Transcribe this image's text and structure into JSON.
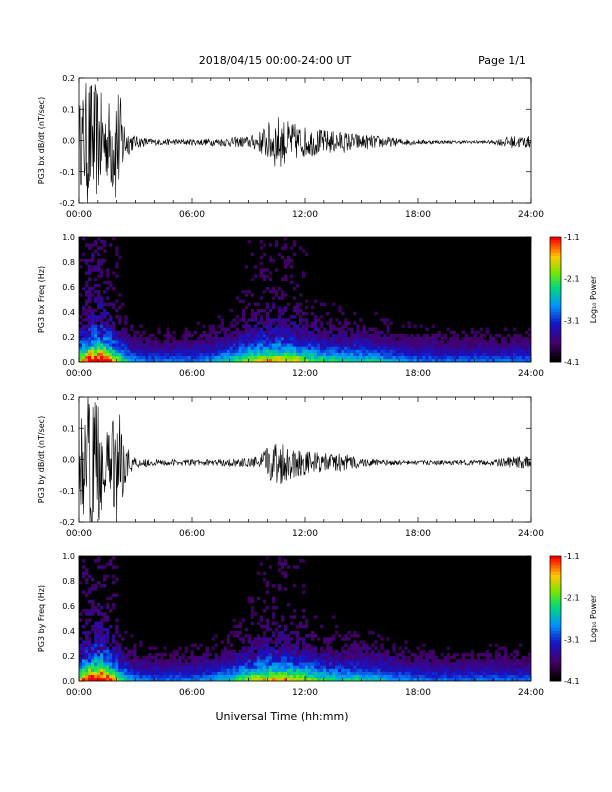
{
  "header": {
    "title": "2018/04/15  00:00-24:00 UT",
    "page": "Page 1/1"
  },
  "xlabel": "Universal Time (hh:mm)",
  "x_ticks": [
    "00:00",
    "06:00",
    "12:00",
    "18:00",
    "24:00"
  ],
  "colors": {
    "background": "#ffffff",
    "axis": "#000000",
    "trace": "#000000",
    "spectrogram_bg": "#000000"
  },
  "chart_data": [
    {
      "type": "line",
      "ylabel": "PG3 bx dB/dt (nT/sec)",
      "xlim": [
        0,
        24
      ],
      "ylim": [
        -0.2,
        0.2
      ],
      "y_ticks": [
        "0.2",
        "0.1",
        "0.0",
        "-0.1",
        "-0.2"
      ],
      "series": [
        {
          "x": [
            0,
            0.5,
            1,
            1.5,
            2,
            2.5,
            3,
            4,
            5,
            6,
            7,
            8,
            9,
            9.5,
            10,
            10.5,
            11,
            12,
            13,
            14,
            15,
            16,
            17,
            18,
            19,
            20,
            21,
            22,
            22.5,
            23,
            24
          ],
          "amplitude": [
            0.12,
            0.22,
            0.18,
            0.12,
            0.22,
            0.05,
            0.02,
            0.01,
            0.01,
            0.01,
            0.012,
            0.015,
            0.02,
            0.03,
            0.06,
            0.09,
            0.07,
            0.05,
            0.04,
            0.035,
            0.025,
            0.02,
            0.012,
            0.008,
            0.006,
            0.005,
            0.005,
            0.006,
            0.015,
            0.02,
            0.02
          ],
          "offset": -0.005
        }
      ]
    },
    {
      "type": "heatmap",
      "ylabel": "PG3 bx Freq (Hz)",
      "xlim": [
        0,
        24
      ],
      "ylim": [
        0,
        1.0
      ],
      "y_ticks": [
        "1.0",
        "0.8",
        "0.6",
        "0.4",
        "0.2",
        "0.0"
      ],
      "colorbar": {
        "label": "Log₁₀ Power",
        "range": [
          -4.1,
          -1.1
        ],
        "ticks": [
          "-1.1",
          "-2.1",
          "-3.1",
          "-4.1"
        ]
      }
    },
    {
      "type": "line",
      "ylabel": "PG3 by dB/dt (nT/sec)",
      "xlim": [
        0,
        24
      ],
      "ylim": [
        -0.2,
        0.2
      ],
      "y_ticks": [
        "0.2",
        "0.1",
        "0.0",
        "-0.1",
        "-0.2"
      ],
      "series": [
        {
          "x": [
            0,
            0.5,
            1,
            1.5,
            2,
            2.5,
            3,
            4,
            5,
            6,
            7,
            8,
            9,
            9.5,
            10,
            10.5,
            11,
            12,
            13,
            14,
            15,
            16,
            17,
            18,
            19,
            20,
            21,
            22,
            22.5,
            23,
            24
          ],
          "amplitude": [
            0.12,
            0.22,
            0.2,
            0.1,
            0.2,
            0.06,
            0.02,
            0.01,
            0.01,
            0.01,
            0.01,
            0.012,
            0.015,
            0.02,
            0.05,
            0.08,
            0.06,
            0.04,
            0.03,
            0.03,
            0.015,
            0.01,
            0.008,
            0.007,
            0.007,
            0.008,
            0.008,
            0.009,
            0.015,
            0.02,
            0.02
          ],
          "offset": -0.01
        }
      ]
    },
    {
      "type": "heatmap",
      "ylabel": "PG3 by Freq (Hz)",
      "xlim": [
        0,
        24
      ],
      "ylim": [
        0,
        1.0
      ],
      "y_ticks": [
        "1.0",
        "0.8",
        "0.6",
        "0.4",
        "0.2",
        "0.0"
      ],
      "colorbar": {
        "label": "Log₁₀ Power",
        "range": [
          -4.1,
          -1.1
        ],
        "ticks": [
          "-1.1",
          "-2.1",
          "-3.1",
          "-4.1"
        ]
      }
    }
  ]
}
